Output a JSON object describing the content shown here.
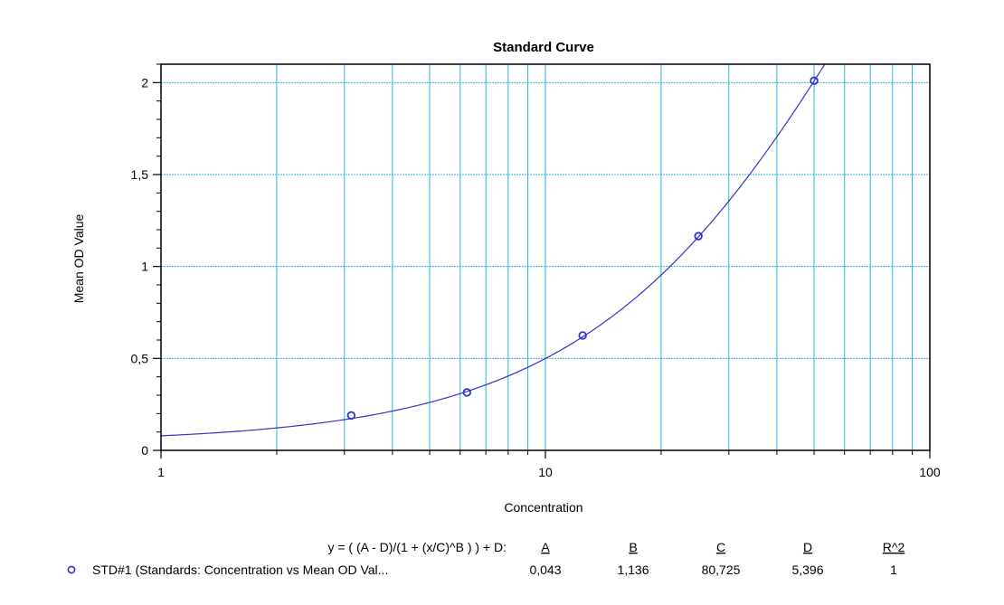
{
  "chart_data": {
    "type": "scatter",
    "title": "Standard Curve",
    "xlabel": "Concentration",
    "ylabel": "Mean OD Value",
    "x_scale": "log",
    "xlim": [
      1,
      100
    ],
    "ylim": [
      0,
      2.1
    ],
    "x_ticks": [
      {
        "value": 1,
        "label": "1"
      },
      {
        "value": 10,
        "label": "10"
      },
      {
        "value": 100,
        "label": "100"
      }
    ],
    "y_ticks": [
      {
        "value": 0,
        "label": "0"
      },
      {
        "value": 0.5,
        "label": "0,5"
      },
      {
        "value": 1,
        "label": "1"
      },
      {
        "value": 1.5,
        "label": "1,5"
      },
      {
        "value": 2,
        "label": "2"
      }
    ],
    "grid": true,
    "colors": {
      "grid": "#29b6d6",
      "series": "#3333cc"
    },
    "series": [
      {
        "name": "STD#1 (Standards: Concentration vs Mean OD Val...",
        "marker": "circle",
        "x": [
          3.125,
          6.25,
          12.5,
          25,
          50
        ],
        "y": [
          0.19,
          0.315,
          0.625,
          1.165,
          2.01
        ]
      }
    ],
    "fit": {
      "equation": "y = ( (A - D)/(1 + (x/C)^B ) ) + D:",
      "headers": [
        "A",
        "B",
        "C",
        "D",
        "R^2"
      ],
      "values": [
        "0,043",
        "1,136",
        "80,725",
        "5,396",
        "1"
      ],
      "params": {
        "A": 0.043,
        "B": 1.136,
        "C": 80.725,
        "D": 5.396
      }
    }
  }
}
